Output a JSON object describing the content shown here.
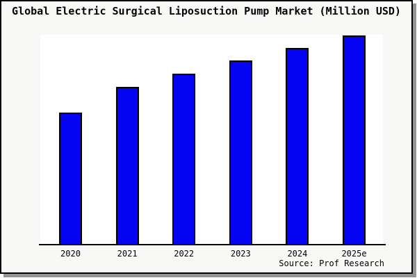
{
  "window": {
    "background_color": "#f8f8f7",
    "frame_border_color": "#000000",
    "shadow_color": "#949494",
    "plot_background_color": "#ffffff"
  },
  "title": "Global Electric Surgical Liposuction Pump Market (Million USD)",
  "source_note": "Source: Prof Research",
  "chart_data": {
    "type": "bar",
    "title": "Global Electric Surgical Liposuction Pump Market (Million USD)",
    "categories": [
      "2020",
      "2021",
      "2022",
      "2023",
      "2024",
      "2025e"
    ],
    "values": [
      63,
      75.3,
      81.7,
      88,
      94,
      100
    ],
    "value_note": "no y-axis labels or gridlines visible; values are relative bar heights indexed to 2025e = 100",
    "xlabel": "",
    "ylabel": "",
    "ylim": [
      0,
      100
    ],
    "grid": false,
    "legend": false,
    "y_axis_visible": false,
    "x_axis_line_visible": true,
    "bar_color": "#0404f2",
    "bar_border_color": "#000000",
    "annotations": [
      "Source: Prof Research"
    ]
  }
}
